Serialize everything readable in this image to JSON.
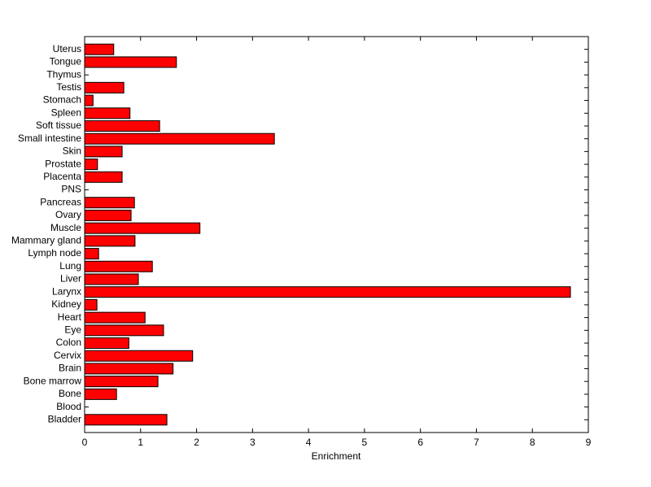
{
  "chart_data": {
    "type": "barh",
    "xlabel": "Enrichment",
    "categories": [
      "Bladder",
      "Blood",
      "Bone",
      "Bone marrow",
      "Brain",
      "Cervix",
      "Colon",
      "Eye",
      "Heart",
      "Kidney",
      "Larynx",
      "Liver",
      "Lung",
      "Lymph node",
      "Mammary gland",
      "Muscle",
      "Ovary",
      "Pancreas",
      "PNS",
      "Placenta",
      "Prostate",
      "Skin",
      "Small intestine",
      "Soft tissue",
      "Spleen",
      "Stomach",
      "Testis",
      "Thymus",
      "Tongue",
      "Uterus"
    ],
    "values": [
      1.47,
      0,
      0.57,
      1.31,
      1.58,
      1.93,
      0.79,
      1.41,
      1.08,
      0.22,
      8.68,
      0.96,
      1.21,
      0.25,
      0.9,
      2.06,
      0.83,
      0.89,
      0,
      0.67,
      0.23,
      0.67,
      3.39,
      1.34,
      0.81,
      0.15,
      0.7,
      0,
      1.64,
      0.52
    ],
    "color": "#ff0000",
    "xlim": [
      0,
      9
    ],
    "xticks": [
      0,
      1,
      2,
      3,
      4,
      5,
      6,
      7,
      8,
      9
    ]
  }
}
